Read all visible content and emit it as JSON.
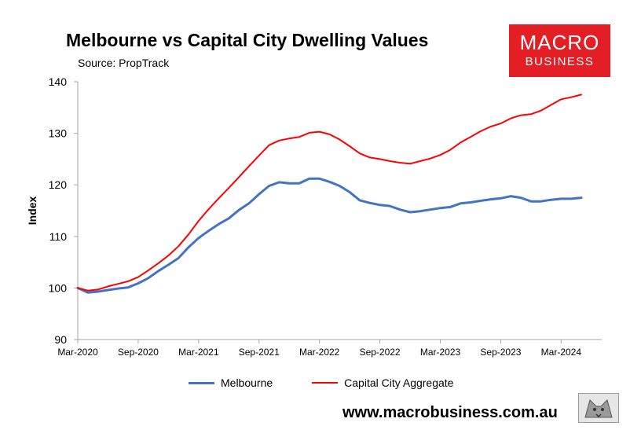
{
  "title": "Melbourne vs Capital City Dwelling Values",
  "source": "Source: PropTrack",
  "logo": {
    "line1": "MACRO",
    "line2": "BUSINESS",
    "color": "#e31e24"
  },
  "footer": "www.macrobusiness.com.au",
  "chart_data": {
    "type": "line",
    "ylabel": "Index",
    "xlabel": "",
    "ylim": [
      90,
      140
    ],
    "yticks": [
      90,
      100,
      110,
      120,
      130,
      140
    ],
    "xticks": [
      "Mar-2020",
      "Sep-2020",
      "Mar-2021",
      "Sep-2021",
      "Mar-2022",
      "Sep-2022",
      "Mar-2023",
      "Sep-2023",
      "Mar-2024"
    ],
    "x": [
      "Mar-2020",
      "Apr-2020",
      "May-2020",
      "Jun-2020",
      "Jul-2020",
      "Aug-2020",
      "Sep-2020",
      "Oct-2020",
      "Nov-2020",
      "Dec-2020",
      "Jan-2021",
      "Feb-2021",
      "Mar-2021",
      "Apr-2021",
      "May-2021",
      "Jun-2021",
      "Jul-2021",
      "Aug-2021",
      "Sep-2021",
      "Oct-2021",
      "Nov-2021",
      "Dec-2021",
      "Jan-2022",
      "Feb-2022",
      "Mar-2022",
      "Apr-2022",
      "May-2022",
      "Jun-2022",
      "Jul-2022",
      "Aug-2022",
      "Sep-2022",
      "Oct-2022",
      "Nov-2022",
      "Dec-2022",
      "Jan-2023",
      "Feb-2023",
      "Mar-2023",
      "Apr-2023",
      "May-2023",
      "Jun-2023",
      "Jul-2023",
      "Aug-2023",
      "Sep-2023",
      "Oct-2023",
      "Nov-2023",
      "Dec-2023",
      "Jan-2024",
      "Feb-2024",
      "Mar-2024",
      "Apr-2024",
      "May-2024"
    ],
    "grid": false,
    "legend_position": "bottom",
    "series": [
      {
        "name": "Melbourne",
        "color": "#4472c4",
        "values": [
          100.0,
          99.1,
          99.3,
          99.6,
          99.9,
          100.1,
          100.9,
          101.9,
          103.3,
          104.5,
          105.8,
          107.9,
          109.7,
          111.1,
          112.4,
          113.5,
          115.1,
          116.4,
          118.2,
          119.8,
          120.5,
          120.3,
          120.3,
          121.2,
          121.2,
          120.6,
          119.8,
          118.6,
          117.0,
          116.5,
          116.1,
          115.9,
          115.2,
          114.7,
          114.9,
          115.2,
          115.5,
          115.7,
          116.4,
          116.6,
          116.9,
          117.2,
          117.4,
          117.8,
          117.5,
          116.8,
          116.8,
          117.1,
          117.3,
          117.3,
          117.5
        ]
      },
      {
        "name": "Capital City Aggregate",
        "color": "#ff0000",
        "values": [
          100.0,
          99.5,
          99.7,
          100.3,
          100.8,
          101.3,
          102.1,
          103.4,
          104.8,
          106.3,
          108.1,
          110.4,
          113.0,
          115.3,
          117.4,
          119.4,
          121.5,
          123.6,
          125.7,
          127.7,
          128.6,
          129.0,
          129.3,
          130.1,
          130.3,
          129.8,
          128.8,
          127.5,
          126.1,
          125.3,
          125.0,
          124.6,
          124.3,
          124.1,
          124.6,
          125.1,
          125.8,
          126.8,
          128.2,
          129.3,
          130.4,
          131.3,
          131.9,
          132.9,
          133.5,
          133.7,
          134.4,
          135.5,
          136.6,
          137.0,
          137.5
        ]
      }
    ]
  }
}
